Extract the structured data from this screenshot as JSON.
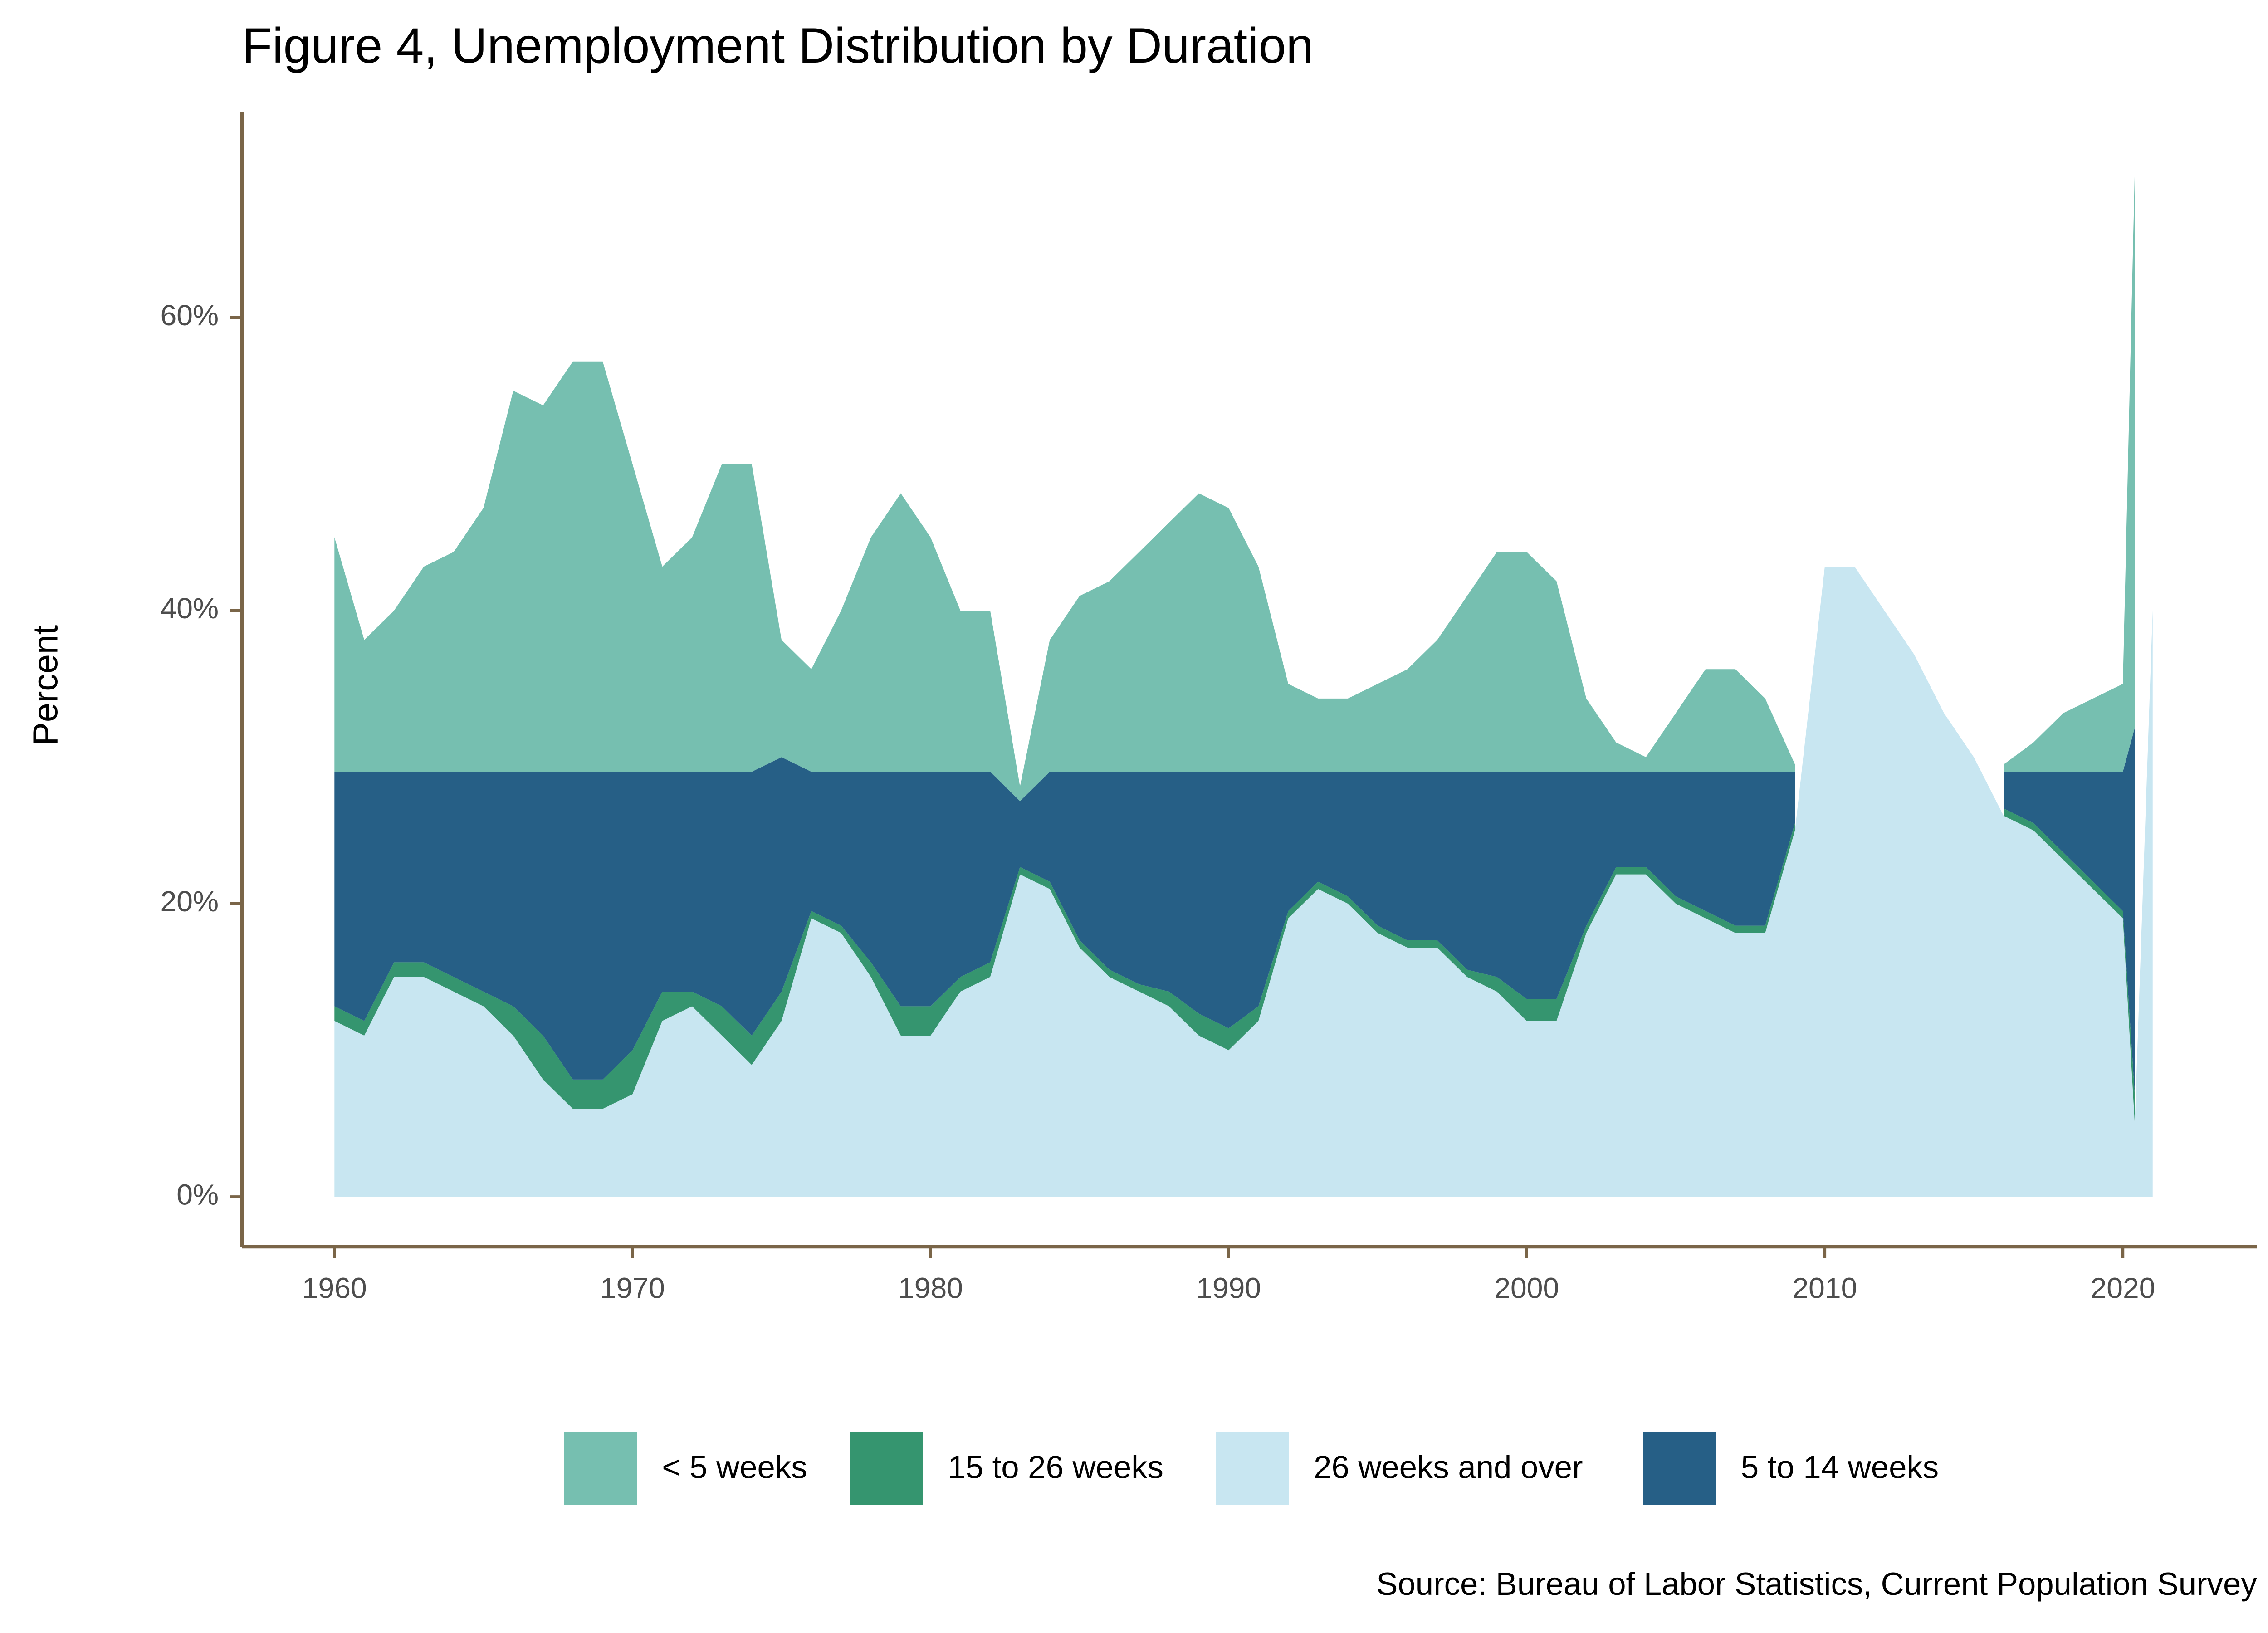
{
  "chart_data": {
    "type": "area",
    "title": "Figure 4, Unemployment Distribution by Duration",
    "y_label": "Percent",
    "source": "Source: Bureau of Labor Statistics, Current Population Survey",
    "x": [
      1960,
      1961,
      1962,
      1963,
      1964,
      1965,
      1966,
      1967,
      1968,
      1969,
      1970,
      1971,
      1972,
      1973,
      1974,
      1975,
      1976,
      1977,
      1978,
      1979,
      1980,
      1981,
      1982,
      1983,
      1984,
      1985,
      1986,
      1987,
      1988,
      1989,
      1990,
      1991,
      1992,
      1993,
      1994,
      1995,
      1996,
      1997,
      1998,
      1999,
      2000,
      2001,
      2002,
      2003,
      2004,
      2005,
      2006,
      2007,
      2008,
      2009,
      2010,
      2011,
      2012,
      2013,
      2014,
      2015,
      2016,
      2017,
      2018,
      2019,
      2020,
      2020.4,
      2021
    ],
    "series": [
      {
        "name": "< 5 weeks",
        "color": "#76bfb0",
        "values": [
          16,
          9,
          11,
          14,
          15,
          18,
          26,
          25,
          28,
          28,
          21,
          14,
          16,
          21,
          21,
          8,
          7,
          11,
          16,
          19,
          16,
          11,
          11,
          1,
          9,
          12,
          13,
          15,
          17,
          19,
          18,
          14,
          6,
          5,
          5,
          6,
          7,
          9,
          12,
          15,
          15,
          13,
          5,
          2,
          1,
          4,
          7,
          7,
          5,
          0.5,
          null,
          null,
          null,
          null,
          null,
          null,
          0.5,
          2,
          4,
          5,
          6,
          38,
          null
        ]
      },
      {
        "name": "15 to 26 weeks",
        "color": "#35956f",
        "values": [
          1,
          1,
          1,
          1,
          1,
          1,
          2,
          3,
          2,
          2,
          3,
          2,
          1,
          2,
          2,
          2,
          0.5,
          0.5,
          1,
          2,
          2,
          1,
          1,
          0.5,
          0.5,
          0.5,
          0.5,
          0.5,
          1,
          1.5,
          1.5,
          1,
          0.5,
          0.5,
          0.5,
          0.5,
          0.5,
          0.5,
          0.5,
          1,
          1.5,
          1.5,
          0.5,
          0.5,
          0.5,
          0.5,
          0.5,
          0.5,
          0.5,
          0.5,
          null,
          null,
          null,
          null,
          null,
          null,
          0.5,
          0.5,
          0.5,
          0.5,
          0.5,
          2,
          null
        ]
      },
      {
        "name": "26 weeks and over",
        "color": "#c8e6f1",
        "values": [
          12,
          11,
          15,
          15,
          14,
          13,
          11,
          8,
          6,
          6,
          7,
          12,
          13,
          11,
          9,
          12,
          19,
          18,
          15,
          11,
          11,
          14,
          15,
          22,
          21,
          17,
          15,
          14,
          13,
          11,
          10,
          12,
          19,
          21,
          20,
          18,
          17,
          17,
          15,
          14,
          12,
          12,
          18,
          22,
          22,
          20,
          19,
          18,
          18,
          25,
          43,
          43,
          40,
          37,
          33,
          30,
          26,
          25,
          23,
          21,
          19,
          5,
          40
        ]
      },
      {
        "name": "5 to 14 weeks",
        "color": "#265f86",
        "values": [
          16,
          17,
          13,
          13,
          14,
          15,
          16,
          18,
          21,
          21,
          19,
          15,
          15,
          16,
          18,
          16,
          9.5,
          10.5,
          13,
          16,
          16,
          14,
          13,
          4.5,
          7.5,
          11.5,
          13.5,
          14.5,
          15,
          16.5,
          17.5,
          16,
          9.5,
          7.5,
          8.5,
          10.5,
          11.5,
          11.5,
          13.5,
          14,
          15.5,
          15.5,
          10.5,
          6.5,
          6.5,
          8.5,
          9.5,
          10.5,
          10.5,
          3.5,
          null,
          null,
          null,
          null,
          null,
          null,
          2.5,
          3.5,
          5.5,
          7.5,
          9.5,
          25,
          null
        ]
      }
    ],
    "xlim": [
      1956.9,
      2024.5
    ],
    "xticks": [
      1960,
      1970,
      1980,
      1990,
      2000,
      2010,
      2020
    ],
    "ylim": [
      -3.4,
      74
    ],
    "yticks": [
      {
        "value": 0,
        "label": "0%"
      },
      {
        "value": 20,
        "label": "20%"
      },
      {
        "value": 40,
        "label": "40%"
      },
      {
        "value": 60,
        "label": "60%"
      }
    ],
    "legend": "bottom"
  }
}
